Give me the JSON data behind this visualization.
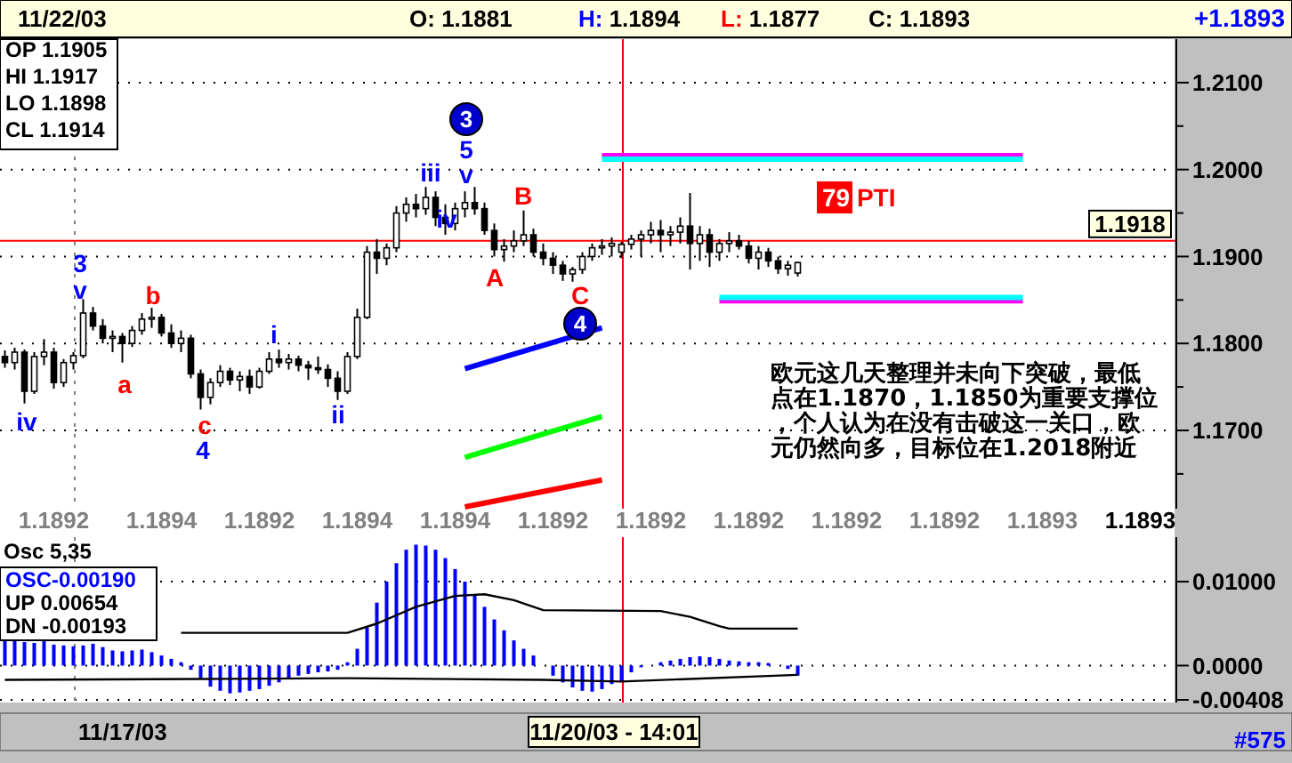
{
  "chart_data": [
    {
      "type": "candlestick",
      "title": "11/22/03",
      "annotations": [
        "O: 1.1881",
        "H: 1.1894",
        "L: 1.1877",
        "C: 1.1893",
        "+1.1893",
        "OP 1.1905",
        "HI 1.1917",
        "LO 1.1898",
        "CL 1.1914",
        "欧元这几天整理并未向下突破，最低点在1.1870，1.1850为重要支撑位，个人认为在没有击破这一关口，欧元仍然向多，目标位在1.2018附近",
        "iv",
        "3",
        "v",
        "a",
        "b",
        "c",
        "4",
        "i",
        "ii",
        "iii",
        "iv",
        "v",
        "5",
        "3",
        "A",
        "B",
        "C",
        "4",
        "79 PTI"
      ],
      "categories": [
        null,
        null,
        null,
        null,
        null,
        "1.1892",
        null,
        null,
        null,
        null,
        null,
        null,
        null,
        null,
        null,
        null,
        "1.1894",
        null,
        null,
        null,
        null,
        null,
        null,
        null,
        null,
        null,
        "1.1892",
        null,
        null,
        null,
        null,
        null,
        null,
        null,
        null,
        null,
        "1.1894",
        null,
        null,
        null,
        null,
        null,
        null,
        null,
        null,
        null,
        "1.1894",
        null,
        null,
        null,
        null,
        null,
        null,
        null,
        null,
        null,
        "1.1892",
        null,
        null,
        null,
        null,
        null,
        null,
        null,
        null,
        null,
        "1.1892",
        null,
        null,
        null,
        null,
        null,
        null,
        null,
        null,
        null,
        "1.1892",
        null,
        null,
        null,
        null,
        null,
        null,
        null,
        null,
        null,
        "1.1892",
        null,
        null,
        null,
        null,
        null,
        null,
        null,
        null,
        null,
        "1.1892",
        null,
        null,
        null,
        null,
        null,
        null,
        null,
        null,
        null,
        "1.1893",
        null,
        null,
        null,
        null,
        null,
        null,
        null,
        null,
        null,
        "1.1893",
        null,
        null,
        null
      ],
      "ohlc": [
        [
          1.1785,
          1.1792,
          1.1772,
          1.1778
        ],
        [
          1.1778,
          1.1795,
          1.177,
          1.179
        ],
        [
          1.179,
          1.1793,
          1.1731,
          1.1745
        ],
        [
          1.1745,
          1.179,
          1.1742,
          1.1785
        ],
        [
          1.1785,
          1.1805,
          1.1775,
          1.179
        ],
        [
          1.179,
          1.1795,
          1.1748,
          1.1755
        ],
        [
          1.1755,
          1.1782,
          1.175,
          1.1778
        ],
        [
          1.1778,
          1.179,
          1.177,
          1.1786
        ],
        [
          1.1786,
          1.1851,
          1.1783,
          1.1835
        ],
        [
          1.1835,
          1.1842,
          1.1815,
          1.182
        ],
        [
          1.182,
          1.1828,
          1.18,
          1.1806
        ],
        [
          1.1806,
          1.1815,
          1.179,
          1.1808
        ],
        [
          1.1808,
          1.1812,
          1.1778,
          1.18
        ],
        [
          1.18,
          1.182,
          1.1796,
          1.1815
        ],
        [
          1.1815,
          1.1835,
          1.181,
          1.1828
        ],
        [
          1.1828,
          1.1841,
          1.1818,
          1.183
        ],
        [
          1.183,
          1.1834,
          1.1808,
          1.1812
        ],
        [
          1.1812,
          1.1822,
          1.1795,
          1.18
        ],
        [
          1.18,
          1.1815,
          1.179,
          1.1806
        ],
        [
          1.1806,
          1.181,
          1.176,
          1.1765
        ],
        [
          1.1765,
          1.177,
          1.1724,
          1.1738
        ],
        [
          1.1738,
          1.176,
          1.173,
          1.1755
        ],
        [
          1.1755,
          1.1775,
          1.175,
          1.1768
        ],
        [
          1.1768,
          1.1772,
          1.1752,
          1.1758
        ],
        [
          1.1758,
          1.1768,
          1.1745,
          1.1762
        ],
        [
          1.1762,
          1.177,
          1.1742,
          1.175
        ],
        [
          1.175,
          1.1772,
          1.1748,
          1.1768
        ],
        [
          1.1768,
          1.179,
          1.1765,
          1.1782
        ],
        [
          1.1782,
          1.1793,
          1.1772,
          1.1778
        ],
        [
          1.1778,
          1.1788,
          1.177,
          1.1782
        ],
        [
          1.1782,
          1.1786,
          1.1768,
          1.1775
        ],
        [
          1.1775,
          1.178,
          1.1758,
          1.1772
        ],
        [
          1.1772,
          1.1785,
          1.1765,
          1.177
        ],
        [
          1.177,
          1.1776,
          1.175,
          1.176
        ],
        [
          1.176,
          1.1768,
          1.1735,
          1.1745
        ],
        [
          1.1745,
          1.179,
          1.1742,
          1.1785
        ],
        [
          1.1785,
          1.184,
          1.1782,
          1.183
        ],
        [
          1.183,
          1.1912,
          1.1828,
          1.1905
        ],
        [
          1.1905,
          1.192,
          1.188,
          1.1898
        ],
        [
          1.1898,
          1.1915,
          1.189,
          1.191
        ],
        [
          1.191,
          1.1958,
          1.1905,
          1.195
        ],
        [
          1.195,
          1.1968,
          1.194,
          1.196
        ],
        [
          1.196,
          1.1972,
          1.1945,
          1.1955
        ],
        [
          1.1955,
          1.198,
          1.1948,
          1.1968
        ],
        [
          1.1968,
          1.1975,
          1.1935,
          1.1945
        ],
        [
          1.1945,
          1.196,
          1.1925,
          1.1938
        ],
        [
          1.1938,
          1.1962,
          1.193,
          1.1955
        ],
        [
          1.1955,
          1.1975,
          1.1945,
          1.1962
        ],
        [
          1.1962,
          1.198,
          1.1948,
          1.1955
        ],
        [
          1.1955,
          1.1962,
          1.1925,
          1.193
        ],
        [
          1.193,
          1.1938,
          1.19,
          1.1908
        ],
        [
          1.1908,
          1.192,
          1.1894,
          1.1912
        ],
        [
          1.1912,
          1.193,
          1.1905,
          1.1918
        ],
        [
          1.1918,
          1.1953,
          1.1912,
          1.1925
        ],
        [
          1.1925,
          1.1932,
          1.19,
          1.1905
        ],
        [
          1.1905,
          1.1915,
          1.189,
          1.1898
        ],
        [
          1.1898,
          1.1905,
          1.188,
          1.189
        ],
        [
          1.189,
          1.1895,
          1.1872,
          1.188
        ],
        [
          1.188,
          1.1888,
          1.1871,
          1.1885
        ],
        [
          1.1885,
          1.1905,
          1.188,
          1.19
        ],
        [
          1.19,
          1.1915,
          1.1895,
          1.191
        ],
        [
          1.191,
          1.192,
          1.1902,
          1.1912
        ],
        [
          1.1912,
          1.1922,
          1.19,
          1.1915
        ],
        [
          1.1905,
          1.1917,
          1.1898,
          1.1914
        ],
        [
          1.1914,
          1.1925,
          1.1908,
          1.192
        ],
        [
          1.192,
          1.193,
          1.19,
          1.1925
        ],
        [
          1.1925,
          1.194,
          1.1915,
          1.193
        ],
        [
          1.193,
          1.1942,
          1.1905,
          1.1925
        ],
        [
          1.1925,
          1.1935,
          1.1912,
          1.1928
        ],
        [
          1.1928,
          1.1945,
          1.1915,
          1.1935
        ],
        [
          1.1935,
          1.1973,
          1.1885,
          1.1915
        ],
        [
          1.1915,
          1.1935,
          1.1895,
          1.1925
        ],
        [
          1.1925,
          1.1932,
          1.1888,
          1.1905
        ],
        [
          1.1905,
          1.192,
          1.1895,
          1.1915
        ],
        [
          1.1915,
          1.1928,
          1.1905,
          1.1918
        ],
        [
          1.1918,
          1.1925,
          1.1908,
          1.1912
        ],
        [
          1.1912,
          1.1918,
          1.1892,
          1.1898
        ],
        [
          1.1898,
          1.1912,
          1.1885,
          1.1905
        ],
        [
          1.1905,
          1.191,
          1.1888,
          1.1895
        ],
        [
          1.1895,
          1.19,
          1.188,
          1.1886
        ],
        [
          1.1886,
          1.1895,
          1.1878,
          1.189
        ],
        [
          1.1881,
          1.1894,
          1.1877,
          1.1893
        ],
        null,
        null,
        null,
        null,
        null,
        null,
        null,
        null,
        null,
        null,
        null,
        null,
        null,
        null,
        null,
        null,
        null,
        null,
        null,
        null,
        null,
        null,
        null,
        null,
        null,
        null,
        null,
        null,
        null,
        null,
        null,
        null,
        null,
        null,
        null,
        null,
        null,
        null
      ],
      "series": [
        {
          "type": "line",
          "color": "#ff00ff",
          "values": [
            null,
            null,
            null,
            null,
            null,
            null,
            null,
            null,
            null,
            null,
            null,
            null,
            null,
            null,
            null,
            null,
            null,
            null,
            null,
            null,
            null,
            null,
            null,
            null,
            null,
            null,
            null,
            null,
            null,
            null,
            null,
            null,
            null,
            null,
            null,
            null,
            null,
            null,
            null,
            null,
            null,
            null,
            null,
            null,
            null,
            null,
            null,
            null,
            null,
            null,
            null,
            null,
            null,
            null,
            null,
            null,
            null,
            null,
            null,
            null,
            null,
            1.2016,
            null,
            null,
            null,
            null,
            null,
            null,
            null,
            null,
            null,
            null,
            null,
            null,
            null,
            null,
            null,
            null,
            null,
            null,
            null,
            null,
            null,
            null,
            null,
            null,
            null,
            null,
            null,
            null,
            null,
            null,
            null,
            null,
            null,
            null,
            null,
            null,
            null,
            null,
            null,
            null,
            null,
            null,
            1.2016,
            null,
            null,
            null,
            null,
            null,
            null,
            null,
            null,
            null,
            null,
            null,
            null,
            null,
            null,
            null
          ]
        },
        {
          "type": "line",
          "color": "#00ffff",
          "values": [
            null,
            null,
            null,
            null,
            null,
            null,
            null,
            null,
            null,
            null,
            null,
            null,
            null,
            null,
            null,
            null,
            null,
            null,
            null,
            null,
            null,
            null,
            null,
            null,
            null,
            null,
            null,
            null,
            null,
            null,
            null,
            null,
            null,
            null,
            null,
            null,
            null,
            null,
            null,
            null,
            null,
            null,
            null,
            null,
            null,
            null,
            null,
            null,
            null,
            null,
            null,
            null,
            null,
            null,
            null,
            null,
            null,
            null,
            null,
            null,
            null,
            1.2012,
            null,
            null,
            null,
            null,
            null,
            null,
            null,
            null,
            null,
            null,
            null,
            null,
            null,
            null,
            null,
            null,
            null,
            null,
            null,
            null,
            null,
            null,
            null,
            null,
            null,
            null,
            null,
            null,
            null,
            null,
            null,
            null,
            null,
            null,
            null,
            null,
            null,
            null,
            null,
            null,
            null,
            null,
            1.2012,
            null,
            null,
            null,
            null,
            null,
            null,
            null,
            null,
            null,
            null,
            null,
            null,
            null,
            null,
            null
          ]
        },
        {
          "type": "line",
          "color": "#ff00ff",
          "values": [
            null,
            null,
            null,
            null,
            null,
            null,
            null,
            null,
            null,
            null,
            null,
            null,
            null,
            null,
            null,
            null,
            null,
            null,
            null,
            null,
            null,
            null,
            null,
            null,
            null,
            null,
            null,
            null,
            null,
            null,
            null,
            null,
            null,
            null,
            null,
            null,
            null,
            null,
            null,
            null,
            null,
            null,
            null,
            null,
            null,
            null,
            null,
            null,
            null,
            null,
            null,
            null,
            null,
            null,
            null,
            null,
            null,
            null,
            null,
            null,
            null,
            null,
            null,
            null,
            null,
            null,
            null,
            null,
            null,
            null,
            null,
            null,
            null,
            1.1849,
            null,
            null,
            null,
            null,
            null,
            null,
            null,
            null,
            null,
            null,
            null,
            null,
            null,
            null,
            null,
            null,
            null,
            null,
            null,
            null,
            null,
            null,
            null,
            null,
            null,
            null,
            null,
            null,
            null,
            null,
            1.1849,
            null,
            null,
            null,
            null,
            null,
            null,
            null,
            null,
            null,
            null,
            null,
            null,
            null,
            null,
            null
          ]
        },
        {
          "type": "line",
          "color": "#00ffff",
          "values": [
            null,
            null,
            null,
            null,
            null,
            null,
            null,
            null,
            null,
            null,
            null,
            null,
            null,
            null,
            null,
            null,
            null,
            null,
            null,
            null,
            null,
            null,
            null,
            null,
            null,
            null,
            null,
            null,
            null,
            null,
            null,
            null,
            null,
            null,
            null,
            null,
            null,
            null,
            null,
            null,
            null,
            null,
            null,
            null,
            null,
            null,
            null,
            null,
            null,
            null,
            null,
            null,
            null,
            null,
            null,
            null,
            null,
            null,
            null,
            null,
            null,
            null,
            null,
            null,
            null,
            null,
            null,
            null,
            null,
            null,
            null,
            null,
            null,
            1.1853,
            null,
            null,
            null,
            null,
            null,
            null,
            null,
            null,
            null,
            null,
            null,
            null,
            null,
            null,
            null,
            null,
            null,
            null,
            null,
            null,
            null,
            null,
            null,
            null,
            null,
            null,
            null,
            null,
            null,
            null,
            1.1853,
            null,
            null,
            null,
            null,
            null,
            null,
            null,
            null,
            null,
            null,
            null,
            null,
            null,
            null,
            null
          ]
        },
        {
          "type": "line",
          "color": "#0000ff",
          "values": [
            null,
            null,
            null,
            null,
            null,
            null,
            null,
            null,
            null,
            null,
            null,
            null,
            null,
            null,
            null,
            null,
            null,
            null,
            null,
            null,
            null,
            null,
            null,
            null,
            null,
            null,
            null,
            null,
            null,
            null,
            null,
            null,
            null,
            null,
            null,
            null,
            null,
            null,
            null,
            null,
            null,
            null,
            null,
            null,
            null,
            null,
            null,
            1.1771,
            null,
            null,
            null,
            null,
            null,
            null,
            null,
            null,
            null,
            null,
            null,
            null,
            null,
            1.1818,
            null,
            null,
            null,
            null,
            null,
            null,
            null,
            null,
            null,
            null,
            null,
            null,
            null,
            null,
            null,
            null,
            null,
            null,
            null,
            null,
            null,
            null,
            null,
            null,
            null,
            null,
            null,
            null,
            null,
            null,
            null,
            null,
            null,
            null,
            null,
            null,
            null,
            null,
            null,
            null,
            null,
            null,
            null,
            null,
            null,
            null,
            null,
            null,
            null,
            null,
            null,
            null,
            null,
            null,
            null,
            null,
            null,
            null
          ]
        },
        {
          "type": "line",
          "color": "#00ff00",
          "values": [
            null,
            null,
            null,
            null,
            null,
            null,
            null,
            null,
            null,
            null,
            null,
            null,
            null,
            null,
            null,
            null,
            null,
            null,
            null,
            null,
            null,
            null,
            null,
            null,
            null,
            null,
            null,
            null,
            null,
            null,
            null,
            null,
            null,
            null,
            null,
            null,
            null,
            null,
            null,
            null,
            null,
            null,
            null,
            null,
            null,
            null,
            null,
            1.1669,
            null,
            null,
            null,
            null,
            null,
            null,
            null,
            null,
            null,
            null,
            null,
            null,
            null,
            1.1716,
            null,
            null,
            null,
            null,
            null,
            null,
            null,
            null,
            null,
            null,
            null,
            null,
            null,
            null,
            null,
            null,
            null,
            null,
            null,
            null,
            null,
            null,
            null,
            null,
            null,
            null,
            null,
            null,
            null,
            null,
            null,
            null,
            null,
            null,
            null,
            null,
            null,
            null,
            null,
            null,
            null,
            null,
            null,
            null,
            null,
            null,
            null,
            null,
            null,
            null,
            null,
            null,
            null,
            null,
            null,
            null,
            null,
            null
          ]
        },
        {
          "type": "line",
          "color": "#ff0000",
          "values": [
            null,
            null,
            null,
            null,
            null,
            null,
            null,
            null,
            null,
            null,
            null,
            null,
            null,
            null,
            null,
            null,
            null,
            null,
            null,
            null,
            null,
            null,
            null,
            null,
            null,
            null,
            null,
            null,
            null,
            null,
            null,
            null,
            null,
            null,
            null,
            null,
            null,
            null,
            null,
            null,
            null,
            null,
            null,
            null,
            null,
            null,
            null,
            1.1612,
            null,
            null,
            null,
            null,
            null,
            null,
            null,
            null,
            null,
            null,
            null,
            null,
            null,
            1.1643,
            null,
            null,
            null,
            null,
            null,
            null,
            null,
            null,
            null,
            null,
            null,
            null,
            null,
            null,
            null,
            null,
            null,
            null,
            null,
            null,
            null,
            null,
            null,
            null,
            null,
            null,
            null,
            null,
            null,
            null,
            null,
            null,
            null,
            null,
            null,
            null,
            null,
            null,
            null,
            null,
            null,
            null,
            null,
            null,
            null,
            null,
            null,
            null,
            null,
            null,
            null,
            null,
            null,
            null,
            null,
            null,
            null,
            null
          ]
        }
      ],
      "ylim": [
        1.161,
        1.215
      ],
      "yticks": [
        {
          "value": 1.165,
          "label": null
        },
        {
          "value": 1.17,
          "label": "1.1700"
        },
        {
          "value": 1.175,
          "label": null
        },
        {
          "value": 1.18,
          "label": "1.1800"
        },
        {
          "value": 1.185,
          "label": null
        },
        {
          "value": 1.19,
          "label": "1.1900"
        },
        {
          "value": 1.195,
          "label": null
        },
        {
          "value": 1.2,
          "label": "1.2000"
        },
        {
          "value": 1.205,
          "label": null
        },
        {
          "value": 1.21,
          "label": "1.2100"
        }
      ],
      "grid": "y",
      "ref_lines": [
        {
          "axis": "y",
          "value": 1.1918,
          "label": "1.1918",
          "color": "#ff0000"
        }
      ]
    },
    {
      "type": "bar",
      "annotations": [
        "Osc 5,35",
        "OSC-0.00190",
        "UP 0.00654",
        "DN -0.00193",
        "#575",
        "11/17/03",
        "11/20/03 - 14:01"
      ],
      "categories": [
        null,
        null,
        null,
        null,
        null,
        null,
        null,
        null,
        null,
        null,
        null,
        null,
        null,
        null,
        null,
        null,
        null,
        null,
        null,
        null,
        null,
        null,
        null,
        null,
        null,
        null,
        null,
        null,
        null,
        null,
        null,
        null,
        null,
        null,
        null,
        null,
        null,
        null,
        null,
        null,
        null,
        null,
        null,
        null,
        null,
        null,
        null,
        null,
        null,
        null,
        null,
        null,
        null,
        null,
        null,
        null,
        null,
        null,
        null,
        null,
        null,
        null,
        null,
        null,
        null,
        null,
        null,
        null,
        null,
        null,
        null,
        null,
        null,
        null,
        null,
        null,
        null,
        null,
        null,
        null,
        null,
        null,
        null,
        null,
        null,
        null,
        null,
        null,
        null,
        null,
        null,
        null,
        null,
        null,
        null,
        null,
        null,
        null,
        null,
        null,
        null,
        null,
        null,
        null,
        null,
        null,
        null,
        null,
        null,
        null,
        null,
        null,
        null,
        null,
        null,
        null,
        null,
        null,
        null,
        null
      ],
      "series": [
        {
          "type": "bar",
          "color": "#0000ff",
          "values": [
            0.003,
            0.0031,
            0.0028,
            0.0027,
            0.0029,
            0.0025,
            0.0024,
            0.0023,
            0.0024,
            0.0026,
            0.0022,
            0.0018,
            0.0017,
            0.0018,
            0.0019,
            0.0016,
            0.0012,
            0.0008,
            0.0004,
            -0.0005,
            -0.0015,
            -0.0025,
            -0.003,
            -0.0033,
            -0.0032,
            -0.003,
            -0.0028,
            -0.0024,
            -0.002,
            -0.0016,
            -0.0012,
            -0.001,
            -0.0008,
            -0.0007,
            -0.0005,
            0.0004,
            0.002,
            0.0045,
            0.0075,
            0.01,
            0.0122,
            0.0138,
            0.0144,
            0.0143,
            0.0138,
            0.0128,
            0.0115,
            0.01,
            0.0085,
            0.007,
            0.0055,
            0.0042,
            0.003,
            0.002,
            0.0012,
            null,
            -0.0012,
            -0.002,
            -0.0026,
            -0.003,
            -0.0031,
            -0.0028,
            -0.0022,
            -0.0019,
            -0.0008,
            -0.0002,
            null,
            0.0004,
            0.0006,
            0.0008,
            0.001,
            0.0011,
            0.001,
            0.0008,
            0.0006,
            0.0005,
            0.0004,
            0.0004,
            0.0003,
            null,
            -0.0004,
            -0.0012,
            null,
            null,
            null,
            null,
            null,
            null,
            null,
            null,
            null,
            null,
            null,
            null,
            null,
            null,
            null,
            null,
            null,
            null,
            null,
            null,
            null,
            null,
            null,
            null,
            null,
            null,
            null,
            null,
            null,
            null,
            null,
            null,
            null,
            null,
            null,
            null,
            null,
            null
          ]
        },
        {
          "type": "line",
          "color": "#000000",
          "values": [
            null,
            null,
            null,
            null,
            null,
            null,
            null,
            null,
            null,
            null,
            null,
            null,
            null,
            null,
            null,
            null,
            null,
            null,
            0.0039,
            null,
            null,
            null,
            null,
            null,
            null,
            null,
            null,
            null,
            null,
            null,
            null,
            null,
            null,
            null,
            null,
            0.0039,
            null,
            null,
            0.005,
            null,
            null,
            null,
            0.007,
            null,
            null,
            null,
            0.0083,
            null,
            null,
            0.0085,
            null,
            null,
            0.0078,
            null,
            null,
            0.0066,
            null,
            null,
            null,
            null,
            null,
            null,
            null,
            null,
            null,
            null,
            null,
            0.0065,
            null,
            null,
            0.0058,
            null,
            null,
            0.0047,
            0.0044,
            null,
            null,
            null,
            null,
            null,
            null,
            0.0044,
            null,
            null,
            null,
            null,
            null,
            null,
            null,
            null,
            null,
            null,
            null,
            null,
            null,
            null,
            null,
            null,
            null,
            null,
            null,
            null,
            null,
            null,
            null,
            null,
            null,
            null,
            null,
            null,
            null,
            null,
            null,
            null,
            null,
            null,
            null,
            null,
            null,
            null
          ]
        },
        {
          "type": "line",
          "color": "#000000",
          "values": [
            -0.0017,
            null,
            null,
            null,
            null,
            null,
            null,
            null,
            null,
            null,
            null,
            null,
            null,
            null,
            null,
            null,
            null,
            null,
            null,
            null,
            -0.0016,
            null,
            null,
            null,
            null,
            null,
            null,
            null,
            null,
            null,
            null,
            null,
            null,
            null,
            null,
            -0.0015,
            null,
            null,
            null,
            null,
            null,
            null,
            null,
            null,
            null,
            null,
            null,
            null,
            null,
            null,
            null,
            null,
            null,
            null,
            null,
            -0.0017,
            null,
            null,
            null,
            null,
            null,
            null,
            null,
            -0.0019,
            null,
            null,
            null,
            null,
            null,
            null,
            null,
            null,
            null,
            null,
            null,
            null,
            null,
            null,
            null,
            null,
            null,
            -0.0011,
            null,
            null,
            null,
            null,
            null,
            null,
            null,
            null,
            null,
            null,
            null,
            null,
            null,
            null,
            null,
            null,
            null,
            null,
            null,
            null,
            null,
            null,
            null,
            null,
            null,
            null,
            null,
            null,
            null,
            null,
            null,
            null,
            null,
            null,
            null,
            null,
            null,
            null
          ]
        }
      ],
      "ylim": [
        -0.0044,
        0.0153
      ],
      "yticks": [
        {
          "value": -0.00408,
          "label": "-0.00408"
        },
        {
          "value": 0,
          "label": "0.0000"
        },
        {
          "value": 0.01,
          "label": "0.01000"
        }
      ],
      "tick_labels": "y",
      "grid": "y"
    }
  ]
}
